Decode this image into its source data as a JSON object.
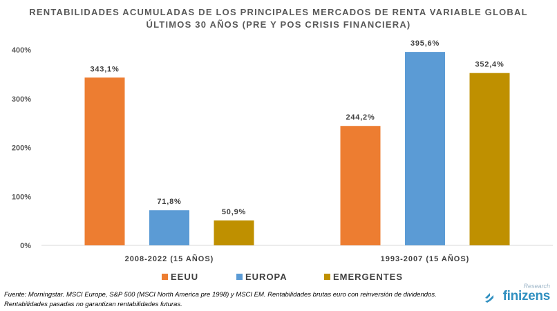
{
  "chart_data": {
    "type": "bar",
    "title": "RENTABILIDADES ACUMULADAS DE LOS PRINCIPALES MERCADOS DE RENTA VARIABLE GLOBAL",
    "subtitle": "ÚLTIMOS 30 AÑOS (PRE Y POS CRISIS FINANCIERA)",
    "categories": [
      "2008-2022 (15 AÑOS)",
      "1993-2007 (15 AÑOS)"
    ],
    "series": [
      {
        "name": "EEUU",
        "color": "#ED7D31",
        "values": [
          343.1,
          244.2
        ],
        "labels": [
          "343,1%",
          "244,2%"
        ]
      },
      {
        "name": "EUROPA",
        "color": "#5B9BD5",
        "values": [
          71.8,
          395.6
        ],
        "labels": [
          "71,8%",
          "395,6%"
        ]
      },
      {
        "name": "EMERGENTES",
        "color": "#BF9000",
        "values": [
          50.9,
          352.4
        ],
        "labels": [
          "50,9%",
          "352,4%"
        ]
      }
    ],
    "ylim": [
      0,
      400
    ],
    "yticks": [
      0,
      100,
      200,
      300,
      400
    ],
    "ytick_labels": [
      "0%",
      "100%",
      "200%",
      "300%",
      "400%"
    ],
    "grid": false,
    "legend": "bottom"
  },
  "footnote": {
    "line1": "Fuente: Morningstar. MSCI Europe, S&P 500 (MSCI North America pre 1998) y MSCI EM. Rentabilidades brutas euro con reinversión de dividendos.",
    "line2": "Rentabilidades pasadas no garantizan rentabilidades futuras."
  },
  "logo": {
    "tagline": "Research",
    "wordmark": "finizens"
  }
}
